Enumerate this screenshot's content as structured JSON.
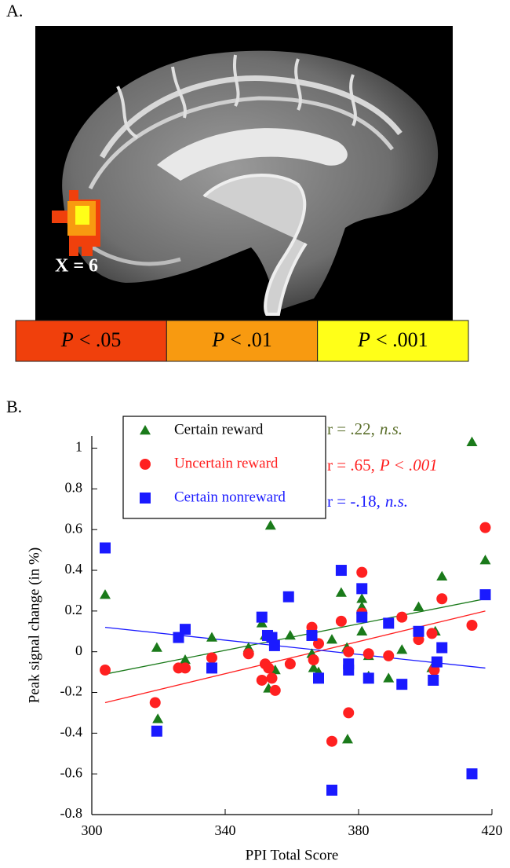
{
  "panel_a": {
    "label": "A.",
    "slice_label": "X = 6",
    "colorbar": [
      {
        "symbol": "P",
        "threshold": "< .05",
        "color": "#f0400c"
      },
      {
        "symbol": "P",
        "threshold": "< .01",
        "color": "#f89a10"
      },
      {
        "symbol": "P",
        "threshold": "< .001",
        "color": "#ffff18"
      }
    ]
  },
  "panel_b_label": "B.",
  "chart_data": {
    "type": "scatter",
    "x_label": "PPI Total Score",
    "y_label": "Peak signal change (in %)",
    "xlim": [
      300,
      420
    ],
    "xticks": [
      300,
      340,
      380,
      420
    ],
    "ylim": [
      -0.8,
      1.06
    ],
    "yticks": [
      -0.8,
      -0.6,
      -0.4,
      -0.2,
      0,
      0.2,
      0.4,
      0.6,
      0.8,
      1
    ],
    "legend": "upper left",
    "series": [
      {
        "name": "Certain reward",
        "color": "#1a7a1a",
        "marker": "triangle",
        "x": [
          304,
          319.5,
          319.8,
          328,
          336,
          347,
          351,
          352,
          353,
          353.6,
          355,
          359.5,
          366,
          366.5,
          368,
          372,
          374.8,
          376.5,
          376.7,
          381,
          381,
          381,
          383,
          383,
          389,
          393,
          398,
          402,
          403,
          405,
          414,
          418
        ],
        "y": [
          0.28,
          0.02,
          -0.33,
          -0.04,
          0.07,
          0.02,
          0.14,
          0.08,
          -0.18,
          0.62,
          -0.09,
          0.08,
          -0.01,
          -0.08,
          -0.1,
          0.06,
          0.29,
          0.02,
          -0.43,
          0.1,
          0.22,
          0.26,
          -0.02,
          -0.12,
          -0.13,
          0.01,
          0.22,
          -0.08,
          0.1,
          0.37,
          1.03,
          0.45
        ],
        "fit": {
          "x": [
            304,
            418
          ],
          "y": [
            -0.11,
            0.26
          ]
        }
      },
      {
        "name": "Uncertain reward",
        "color": "#ff2020",
        "marker": "circle",
        "x": [
          304,
          319,
          326,
          328,
          336,
          347,
          351,
          352,
          353,
          354,
          355,
          359.5,
          366,
          366.5,
          368,
          372,
          374.8,
          377,
          377,
          381,
          381,
          383,
          389,
          393,
          398,
          402,
          402.7,
          405,
          414,
          418
        ],
        "y": [
          -0.09,
          -0.25,
          -0.08,
          -0.08,
          -0.03,
          -0.01,
          -0.14,
          -0.06,
          -0.08,
          -0.13,
          -0.19,
          -0.06,
          0.12,
          -0.04,
          0.04,
          -0.44,
          0.15,
          0,
          -0.3,
          0.39,
          0.19,
          -0.01,
          -0.02,
          0.17,
          0.06,
          0.09,
          -0.09,
          0.26,
          0.13,
          0.61
        ],
        "fit": {
          "x": [
            304,
            418
          ],
          "y": [
            -0.25,
            0.2
          ]
        }
      },
      {
        "name": "Certain nonreward",
        "color": "#1a1aff",
        "marker": "square",
        "x": [
          304,
          319.5,
          326,
          328,
          336,
          351,
          352.7,
          354,
          354.8,
          359,
          366,
          368,
          372,
          374.8,
          377,
          377,
          381,
          381,
          383,
          389,
          393,
          398,
          402.4,
          403.5,
          405,
          414,
          418
        ],
        "y": [
          0.51,
          -0.39,
          0.07,
          0.11,
          -0.08,
          0.17,
          0.08,
          0.07,
          0.03,
          0.27,
          0.08,
          -0.13,
          -0.68,
          0.4,
          -0.06,
          -0.09,
          0.31,
          0.17,
          -0.13,
          0.14,
          -0.16,
          0.1,
          -0.14,
          -0.05,
          0.02,
          -0.6,
          0.28
        ],
        "fit": {
          "x": [
            304,
            418
          ],
          "y": [
            0.12,
            -0.08
          ]
        }
      }
    ],
    "annotations": [
      {
        "text": "r = .22,",
        "emphasis": "n.s.",
        "color": "#5a6e2a"
      },
      {
        "text": "r = .65,",
        "emphasis": "P < .001",
        "color": "#ff2020"
      },
      {
        "text": "r = -.18,",
        "emphasis": "n.s.",
        "color": "#1a1aff"
      }
    ]
  }
}
